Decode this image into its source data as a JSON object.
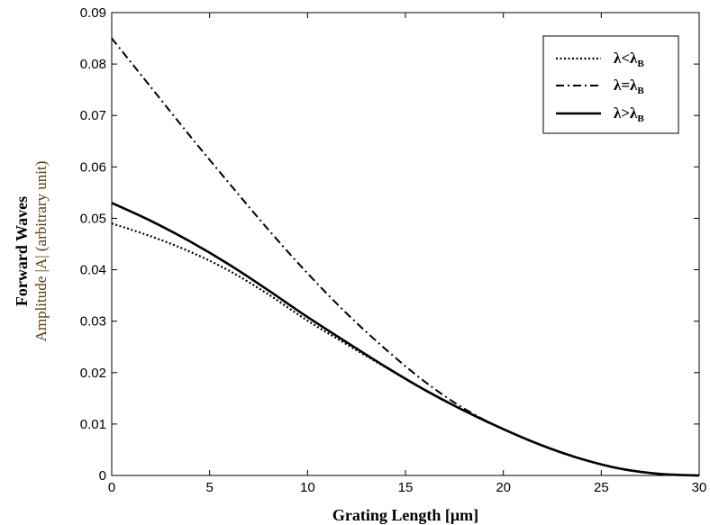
{
  "chart_data": {
    "type": "line",
    "xlabel": "Grating Length [μm]",
    "ylabel_line1": "Forward Waves",
    "ylabel_line2": "Amplitude |A| (arbitrary unit)",
    "xlim": [
      0,
      30
    ],
    "ylim": [
      0,
      0.09
    ],
    "xticks": [
      0,
      5,
      10,
      15,
      20,
      25,
      30
    ],
    "yticks": [
      0,
      0.01,
      0.02,
      0.03,
      0.04,
      0.05,
      0.06,
      0.07,
      0.08,
      0.09
    ],
    "ytick_labels": [
      "0",
      "0.01",
      "0.02",
      "0.03",
      "0.04",
      "0.05",
      "0.06",
      "0.07",
      "0.08",
      "0.09"
    ],
    "grid": false,
    "legend_position": "top-right",
    "series": [
      {
        "name_main": "λ<λ",
        "name_sub": "B",
        "style": "dotted",
        "x": [
          0,
          2,
          4,
          6,
          8,
          10,
          12,
          14,
          16,
          18,
          20,
          22,
          24,
          26,
          28,
          30
        ],
        "y": [
          0.049,
          0.0465,
          0.0435,
          0.0398,
          0.0352,
          0.0301,
          0.0255,
          0.021,
          0.0166,
          0.0126,
          0.009,
          0.0058,
          0.0032,
          0.0013,
          0.0003,
          0.0
        ]
      },
      {
        "name_main": "λ=λ",
        "name_sub": "B",
        "style": "dashdot",
        "x": [
          0,
          2,
          4,
          6,
          8,
          10,
          12,
          14,
          16,
          18,
          20,
          22,
          24,
          26,
          28,
          30
        ],
        "y": [
          0.085,
          0.0755,
          0.066,
          0.0568,
          0.0478,
          0.0393,
          0.0315,
          0.0245,
          0.0182,
          0.013,
          0.009,
          0.0058,
          0.0032,
          0.0013,
          0.0003,
          0.0
        ]
      },
      {
        "name_main": "λ>λ",
        "name_sub": "B",
        "style": "solid",
        "x": [
          0,
          2,
          4,
          6,
          8,
          10,
          12,
          14,
          16,
          18,
          20,
          22,
          24,
          26,
          28,
          30
        ],
        "y": [
          0.053,
          0.0495,
          0.0455,
          0.041,
          0.036,
          0.0308,
          0.0259,
          0.0211,
          0.0166,
          0.0126,
          0.009,
          0.0058,
          0.0032,
          0.0013,
          0.0003,
          0.0
        ]
      }
    ]
  }
}
